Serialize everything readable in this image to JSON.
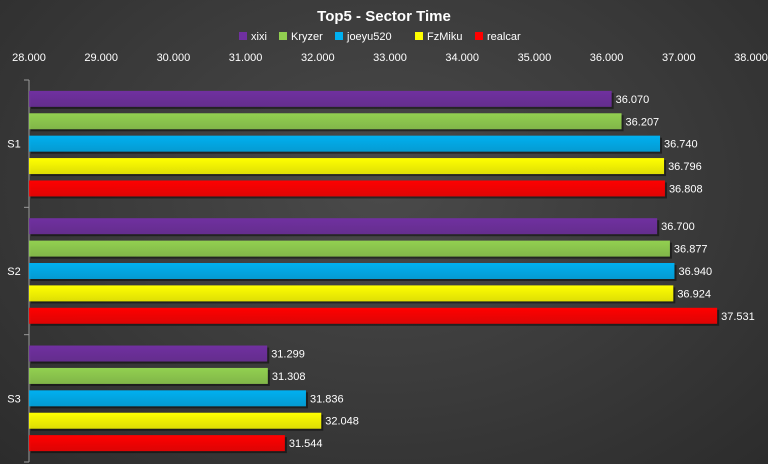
{
  "chart_data": {
    "type": "bar",
    "orientation": "horizontal",
    "title": "Top5 - Sector Time",
    "categories": [
      "S1",
      "S2",
      "S3"
    ],
    "series": [
      {
        "name": "xixi",
        "color": "#7030a0",
        "values": [
          36.07,
          36.7,
          31.299
        ],
        "labels": [
          "36.070",
          "36.700",
          "31.299"
        ]
      },
      {
        "name": "Kryzer",
        "color": "#92d050",
        "values": [
          36.207,
          36.877,
          31.308
        ],
        "labels": [
          "36.207",
          "36.877",
          "31.308"
        ]
      },
      {
        "name": "joeyu520",
        "color": "#00b0f0",
        "values": [
          36.74,
          36.94,
          31.836
        ],
        "labels": [
          "36.740",
          "36.940",
          "31.836"
        ]
      },
      {
        "name": "FzMiku",
        "color": "#ffff00",
        "values": [
          36.796,
          36.924,
          32.048
        ],
        "labels": [
          "36.796",
          "36.924",
          "32.048"
        ]
      },
      {
        "name": "realcar",
        "color": "#ff0000",
        "values": [
          36.808,
          37.531,
          31.544
        ],
        "labels": [
          "36.808",
          "37.531",
          "31.544"
        ]
      }
    ],
    "xlim": [
      28.0,
      38.0
    ],
    "x_ticks": [
      28.0,
      29.0,
      30.0,
      31.0,
      32.0,
      33.0,
      34.0,
      35.0,
      36.0,
      37.0,
      38.0
    ],
    "x_tick_labels": [
      "28.000",
      "29.000",
      "30.000",
      "31.000",
      "32.000",
      "33.000",
      "34.000",
      "35.000",
      "36.000",
      "37.000",
      "38.000"
    ],
    "x_axis_position": "top",
    "legend_position": "top",
    "grid": false,
    "xlabel": "",
    "ylabel": ""
  }
}
